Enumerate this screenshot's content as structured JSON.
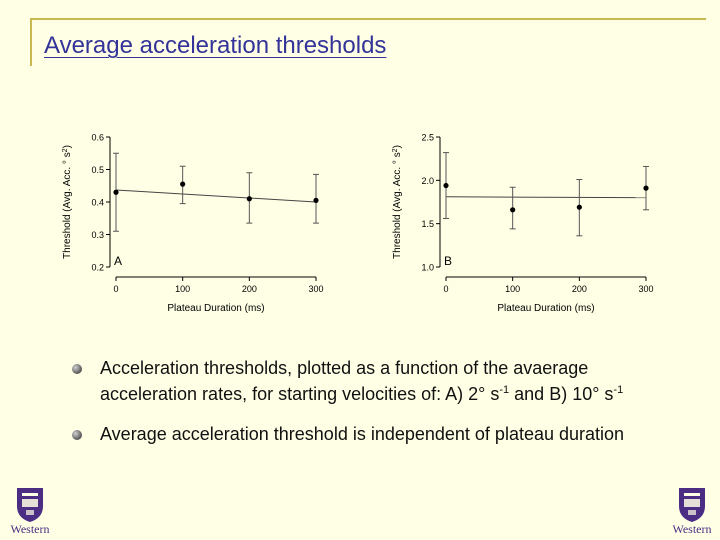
{
  "slide": {
    "title": "Average acceleration thresholds"
  },
  "bullets": [
    {
      "pre": "Acceleration thresholds, plotted as a function of the avaerage acceleration rates, for starting velocities of:  A) 2° s",
      "sup1": "-1",
      "mid": " and B) 10° s",
      "sup2": "-1"
    },
    {
      "pre": "Average acceleration threshold is independent of plateau duration"
    }
  ],
  "logo": {
    "text": "Western",
    "color": "#4b2e83"
  },
  "chart_data": [
    {
      "type": "scatter",
      "panel_label": "A",
      "xlabel": "Plateau Duration (ms)",
      "ylabel": "Threshold (Avg. Acc. ° s",
      "ylabel_sup": "2",
      "ylabel_end": ")",
      "x": [
        0,
        100,
        200,
        300
      ],
      "y": [
        0.43,
        0.455,
        0.41,
        0.405
      ],
      "err_low": [
        0.31,
        0.395,
        0.335,
        0.335
      ],
      "err_high": [
        0.55,
        0.51,
        0.49,
        0.485
      ],
      "fit": {
        "y0": 0.437,
        "y1": 0.4
      },
      "xticks": [
        0,
        100,
        200,
        300
      ],
      "yticks": [
        0.2,
        0.3,
        0.4,
        0.5,
        0.6
      ],
      "ytick_labels": [
        "0.2",
        "0.3",
        "0.4",
        "0.5",
        "0.6"
      ],
      "xlim": [
        0,
        300
      ],
      "ylim": [
        0.2,
        0.6
      ]
    },
    {
      "type": "scatter",
      "panel_label": "B",
      "xlabel": "Plateau Duration (ms)",
      "ylabel": "Threshold (Avg. Acc. ° s",
      "ylabel_sup": "2",
      "ylabel_end": ")",
      "x": [
        0,
        100,
        200,
        300
      ],
      "y": [
        1.94,
        1.66,
        1.69,
        1.91
      ],
      "err_low": [
        1.56,
        1.44,
        1.36,
        1.66
      ],
      "err_high": [
        2.32,
        1.92,
        2.01,
        2.16
      ],
      "fit": {
        "y0": 1.81,
        "y1": 1.8
      },
      "xticks": [
        0,
        100,
        200,
        300
      ],
      "yticks": [
        1.0,
        1.5,
        2.0,
        2.5
      ],
      "ytick_labels": [
        "1.0",
        "1.5",
        "2.0",
        "2.5"
      ],
      "xlim": [
        0,
        300
      ],
      "ylim": [
        1.0,
        2.5
      ]
    }
  ]
}
